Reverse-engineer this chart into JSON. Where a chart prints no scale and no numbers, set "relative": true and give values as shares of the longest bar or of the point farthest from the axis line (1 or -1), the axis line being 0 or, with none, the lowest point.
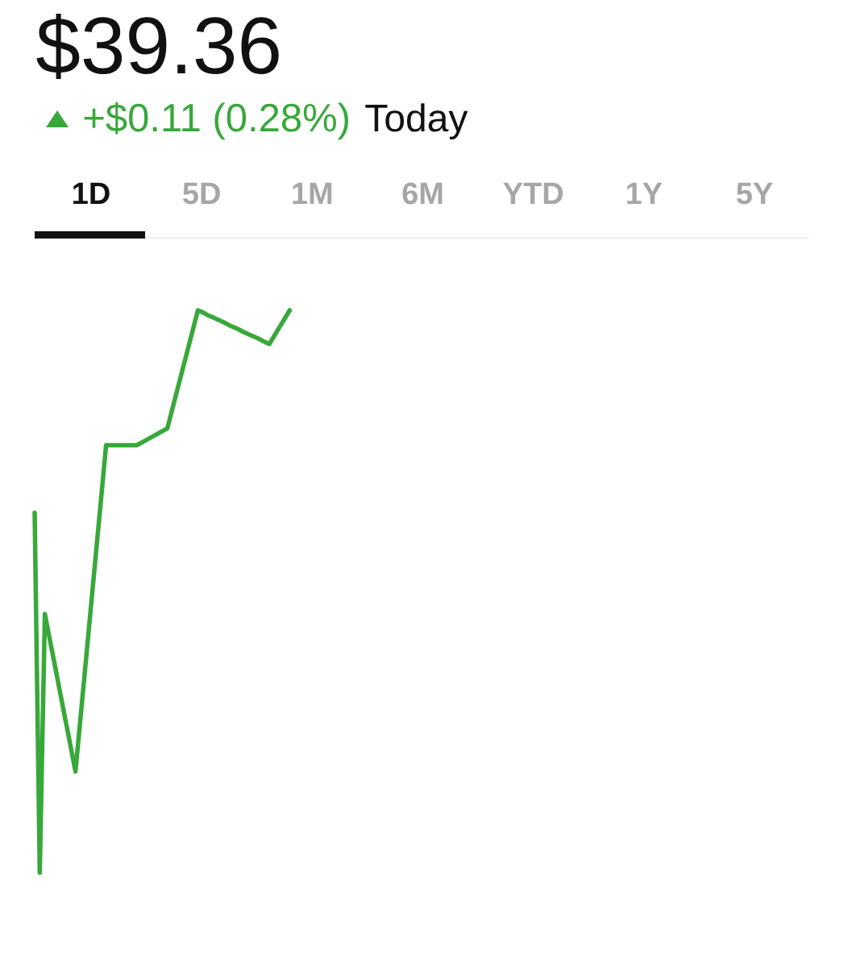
{
  "chart_data": {
    "type": "line",
    "title": "$39.36",
    "subtitle": "+$0.11 (0.28%)",
    "annotations": [
      "Today",
      "1D",
      "5D",
      "1M",
      "6M",
      "YTD",
      "1Y",
      "5Y"
    ],
    "categories": [
      null,
      null,
      null,
      null,
      null,
      null,
      null,
      null,
      null,
      null,
      null,
      null,
      null,
      null,
      null,
      null,
      null,
      null,
      null,
      null,
      null,
      null,
      null,
      null,
      null,
      null,
      null,
      null,
      null,
      null,
      null,
      null,
      null,
      null,
      null,
      null,
      null,
      null,
      null,
      null,
      null,
      null,
      null,
      null,
      null,
      null,
      null,
      null,
      null,
      null,
      null,
      null,
      null,
      null,
      null,
      null,
      null,
      null,
      null,
      null,
      null,
      null,
      null,
      null,
      null,
      null,
      null,
      null,
      null,
      null,
      null,
      null,
      null,
      null,
      null,
      null,
      null,
      null,
      null,
      null,
      null,
      null,
      null,
      null,
      null,
      null,
      null,
      null,
      null,
      null,
      null,
      null,
      null,
      null,
      null,
      null,
      null,
      null,
      null,
      null,
      null,
      null,
      null,
      null,
      null,
      null,
      null,
      null,
      null,
      null,
      null,
      null,
      null,
      null,
      null,
      null,
      null,
      null,
      null,
      null,
      null,
      null,
      null,
      null,
      null,
      null,
      null,
      null,
      null,
      null,
      null,
      null,
      null,
      null,
      null,
      null,
      null,
      null,
      null,
      null,
      null,
      null,
      null,
      null,
      null,
      null,
      null,
      null,
      null,
      null,
      null,
      null,
      null
    ],
    "values": [
      0.64,
      0,
      0.46,
      0.413,
      0.367,
      0.32,
      0.273,
      0.227,
      0.18,
      0.277,
      0.373,
      0.47,
      0.567,
      0.663,
      0.76,
      0.76,
      0.76,
      0.76,
      0.76,
      0.76,
      0.76,
      0.765,
      0.77,
      0.775,
      0.78,
      0.785,
      0.79,
      0.825,
      0.86,
      0.895,
      0.93,
      0.965,
      1,
      0.996,
      0.991,
      0.987,
      0.983,
      0.979,
      0.974,
      0.97,
      0.966,
      0.961,
      0.957,
      0.953,
      0.949,
      0.944,
      0.94,
      0.955,
      0.97,
      0.985,
      1,
      null,
      null,
      null,
      null,
      null,
      null,
      null,
      null,
      null,
      null,
      null,
      null,
      null,
      null,
      null,
      null,
      null,
      null,
      null,
      null,
      null,
      null,
      null,
      null,
      null,
      null,
      null,
      null,
      null,
      null,
      null,
      null,
      null,
      null,
      null,
      null,
      null,
      null,
      null,
      null,
      null,
      null,
      null,
      null,
      null,
      null,
      null,
      null,
      null,
      null,
      null,
      null,
      null,
      null,
      null,
      null,
      null,
      null,
      null,
      null,
      null,
      null,
      null,
      null,
      null,
      null,
      null,
      null,
      null,
      null,
      null,
      null,
      null,
      null,
      null,
      null,
      null,
      null,
      null,
      null,
      null,
      null,
      null,
      null,
      null,
      null,
      null,
      null,
      null,
      null,
      null,
      null,
      null,
      null,
      null,
      null,
      null,
      null,
      null,
      null,
      null,
      null
    ],
    "color": "#38a83a",
    "relative": true
  }
}
